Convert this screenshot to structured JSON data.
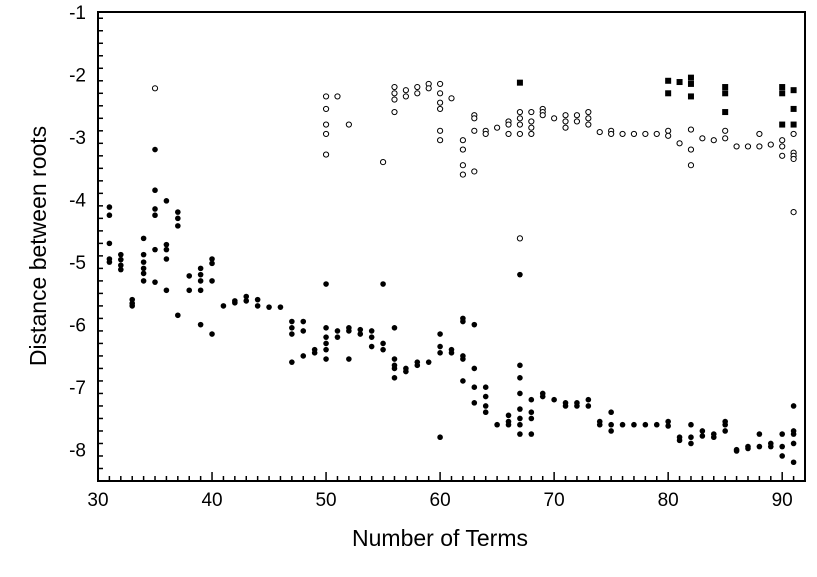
{
  "chart_data": {
    "type": "scatter",
    "xlabel": "Number of Terms",
    "ylabel": "Distance between roots",
    "xlim": [
      30,
      92
    ],
    "ylim": [
      -8.5,
      -1
    ],
    "xticks": [
      30,
      40,
      50,
      60,
      70,
      80,
      90
    ],
    "yticks": [
      -1,
      -2,
      -3,
      -4,
      -5,
      -6,
      -7,
      -8
    ],
    "grid": false,
    "legend": "none",
    "series": [
      {
        "marker": "filled-circle",
        "color": "#000000",
        "points": [
          [
            31,
            -4.12
          ],
          [
            31,
            -4.25
          ],
          [
            31,
            -4.7
          ],
          [
            31,
            -4.95
          ],
          [
            31,
            -5.0
          ],
          [
            32,
            -4.88
          ],
          [
            32,
            -4.96
          ],
          [
            32,
            -5.05
          ],
          [
            32,
            -5.12
          ],
          [
            33,
            -5.6
          ],
          [
            33,
            -5.66
          ],
          [
            33,
            -5.7
          ],
          [
            34,
            -4.62
          ],
          [
            34,
            -4.88
          ],
          [
            34,
            -5.0
          ],
          [
            34,
            -5.1
          ],
          [
            34,
            -5.18
          ],
          [
            34,
            -5.3
          ],
          [
            35,
            -3.2
          ],
          [
            35,
            -3.85
          ],
          [
            35,
            -4.15
          ],
          [
            35,
            -4.25
          ],
          [
            35,
            -4.8
          ],
          [
            35,
            -5.32
          ],
          [
            36,
            -4.02
          ],
          [
            36,
            -4.72
          ],
          [
            36,
            -4.8
          ],
          [
            36,
            -4.95
          ],
          [
            36,
            -5.45
          ],
          [
            37,
            -4.2
          ],
          [
            37,
            -4.3
          ],
          [
            37,
            -4.42
          ],
          [
            37,
            -5.85
          ],
          [
            38,
            -5.22
          ],
          [
            38,
            -5.45
          ],
          [
            39,
            -5.1
          ],
          [
            39,
            -5.2
          ],
          [
            39,
            -5.3
          ],
          [
            39,
            -5.45
          ],
          [
            39,
            -6.0
          ],
          [
            40,
            -4.95
          ],
          [
            40,
            -5.02
          ],
          [
            40,
            -5.3
          ],
          [
            40,
            -6.15
          ],
          [
            41,
            -5.7
          ],
          [
            42,
            -5.65
          ],
          [
            42,
            -5.62
          ],
          [
            43,
            -5.55
          ],
          [
            43,
            -5.62
          ],
          [
            44,
            -5.6
          ],
          [
            44,
            -5.7
          ],
          [
            45,
            -5.72
          ],
          [
            46,
            -5.72
          ],
          [
            47,
            -5.95
          ],
          [
            47,
            -6.05
          ],
          [
            47,
            -6.15
          ],
          [
            47,
            -6.6
          ],
          [
            48,
            -5.95
          ],
          [
            48,
            -6.1
          ],
          [
            48,
            -6.5
          ],
          [
            49,
            -6.45
          ],
          [
            49,
            -6.4
          ],
          [
            50,
            -5.35
          ],
          [
            50,
            -6.05
          ],
          [
            50,
            -6.2
          ],
          [
            50,
            -6.3
          ],
          [
            50,
            -6.4
          ],
          [
            50,
            -6.55
          ],
          [
            51,
            -6.1
          ],
          [
            51,
            -6.2
          ],
          [
            52,
            -6.05
          ],
          [
            52,
            -6.1
          ],
          [
            52,
            -6.55
          ],
          [
            53,
            -6.08
          ],
          [
            53,
            -6.15
          ],
          [
            54,
            -6.1
          ],
          [
            54,
            -6.2
          ],
          [
            54,
            -6.35
          ],
          [
            55,
            -5.35
          ],
          [
            55,
            -6.3
          ],
          [
            55,
            -6.4
          ],
          [
            56,
            -6.05
          ],
          [
            56,
            -6.55
          ],
          [
            56,
            -6.65
          ],
          [
            56,
            -6.7
          ],
          [
            56,
            -6.85
          ],
          [
            57,
            -6.7
          ],
          [
            57,
            -6.75
          ],
          [
            58,
            -6.6
          ],
          [
            58,
            -6.65
          ],
          [
            59,
            -6.6
          ],
          [
            60,
            -6.15
          ],
          [
            60,
            -6.35
          ],
          [
            60,
            -6.45
          ],
          [
            60,
            -7.8
          ],
          [
            61,
            -6.4
          ],
          [
            61,
            -6.45
          ],
          [
            62,
            -5.9
          ],
          [
            62,
            -5.95
          ],
          [
            62,
            -6.5
          ],
          [
            62,
            -6.55
          ],
          [
            62,
            -6.9
          ],
          [
            63,
            -6.0
          ],
          [
            63,
            -6.7
          ],
          [
            63,
            -7.0
          ],
          [
            63,
            -7.25
          ],
          [
            64,
            -7.0
          ],
          [
            64,
            -7.15
          ],
          [
            64,
            -7.3
          ],
          [
            64,
            -7.4
          ],
          [
            65,
            -7.6
          ],
          [
            66,
            -7.45
          ],
          [
            66,
            -7.55
          ],
          [
            66,
            -7.6
          ],
          [
            67,
            -5.2
          ],
          [
            67,
            -6.65
          ],
          [
            67,
            -6.85
          ],
          [
            67,
            -7.1
          ],
          [
            67,
            -7.35
          ],
          [
            67,
            -7.5
          ],
          [
            67,
            -7.6
          ],
          [
            67,
            -7.75
          ],
          [
            68,
            -7.2
          ],
          [
            68,
            -7.4
          ],
          [
            68,
            -7.5
          ],
          [
            68,
            -7.75
          ],
          [
            69,
            -7.1
          ],
          [
            69,
            -7.15
          ],
          [
            70,
            -7.2
          ],
          [
            71,
            -7.25
          ],
          [
            71,
            -7.3
          ],
          [
            72,
            -7.25
          ],
          [
            72,
            -7.3
          ],
          [
            73,
            -7.2
          ],
          [
            73,
            -7.3
          ],
          [
            74,
            -7.55
          ],
          [
            74,
            -7.6
          ],
          [
            75,
            -7.4
          ],
          [
            75,
            -7.6
          ],
          [
            75,
            -7.7
          ],
          [
            76,
            -7.6
          ],
          [
            77,
            -7.6
          ],
          [
            78,
            -7.6
          ],
          [
            79,
            -7.6
          ],
          [
            80,
            -7.55
          ],
          [
            80,
            -7.62
          ],
          [
            81,
            -7.8
          ],
          [
            81,
            -7.85
          ],
          [
            82,
            -7.6
          ],
          [
            82,
            -7.8
          ],
          [
            82,
            -7.9
          ],
          [
            83,
            -7.7
          ],
          [
            83,
            -7.78
          ],
          [
            84,
            -7.75
          ],
          [
            84,
            -7.8
          ],
          [
            85,
            -7.55
          ],
          [
            85,
            -7.6
          ],
          [
            85,
            -7.7
          ],
          [
            86,
            -8.0
          ],
          [
            86,
            -8.02
          ],
          [
            87,
            -7.95
          ],
          [
            87,
            -7.98
          ],
          [
            88,
            -7.75
          ],
          [
            88,
            -7.95
          ],
          [
            89,
            -7.9
          ],
          [
            89,
            -7.95
          ],
          [
            90,
            -7.75
          ],
          [
            90,
            -7.95
          ],
          [
            90,
            -8.1
          ],
          [
            91,
            -7.3
          ],
          [
            91,
            -7.7
          ],
          [
            91,
            -7.75
          ],
          [
            91,
            -7.9
          ],
          [
            91,
            -8.2
          ]
        ]
      },
      {
        "marker": "open-circle",
        "color": "#000000",
        "points": [
          [
            35,
            -2.22
          ],
          [
            50,
            -2.35
          ],
          [
            50,
            -2.55
          ],
          [
            50,
            -2.8
          ],
          [
            50,
            -2.95
          ],
          [
            50,
            -3.28
          ],
          [
            51,
            -2.35
          ],
          [
            52,
            -2.8
          ],
          [
            55,
            -3.4
          ],
          [
            56,
            -2.2
          ],
          [
            56,
            -2.3
          ],
          [
            56,
            -2.4
          ],
          [
            56,
            -2.6
          ],
          [
            57,
            -2.25
          ],
          [
            57,
            -2.35
          ],
          [
            58,
            -2.2
          ],
          [
            58,
            -2.3
          ],
          [
            59,
            -2.15
          ],
          [
            59,
            -2.22
          ],
          [
            60,
            -2.15
          ],
          [
            60,
            -2.3
          ],
          [
            60,
            -2.45
          ],
          [
            60,
            -2.55
          ],
          [
            60,
            -2.9
          ],
          [
            60,
            -3.05
          ],
          [
            61,
            -2.38
          ],
          [
            62,
            -3.05
          ],
          [
            62,
            -3.2
          ],
          [
            62,
            -3.45
          ],
          [
            62,
            -3.6
          ],
          [
            63,
            -2.65
          ],
          [
            63,
            -2.7
          ],
          [
            63,
            -2.9
          ],
          [
            63,
            -3.55
          ],
          [
            64,
            -2.9
          ],
          [
            64,
            -2.95
          ],
          [
            65,
            -2.85
          ],
          [
            66,
            -2.75
          ],
          [
            66,
            -2.8
          ],
          [
            66,
            -2.95
          ],
          [
            67,
            -2.6
          ],
          [
            67,
            -2.7
          ],
          [
            67,
            -2.8
          ],
          [
            67,
            -2.95
          ],
          [
            67,
            -4.62
          ],
          [
            68,
            -2.6
          ],
          [
            68,
            -2.75
          ],
          [
            68,
            -2.85
          ],
          [
            68,
            -2.95
          ],
          [
            69,
            -2.55
          ],
          [
            69,
            -2.6
          ],
          [
            69,
            -2.65
          ],
          [
            70,
            -2.7
          ],
          [
            71,
            -2.65
          ],
          [
            71,
            -2.75
          ],
          [
            71,
            -2.85
          ],
          [
            72,
            -2.65
          ],
          [
            72,
            -2.75
          ],
          [
            73,
            -2.6
          ],
          [
            73,
            -2.7
          ],
          [
            73,
            -2.8
          ],
          [
            74,
            -2.92
          ],
          [
            75,
            -2.9
          ],
          [
            75,
            -2.95
          ],
          [
            76,
            -2.95
          ],
          [
            77,
            -2.95
          ],
          [
            78,
            -2.95
          ],
          [
            79,
            -2.95
          ],
          [
            80,
            -2.9
          ],
          [
            80,
            -2.98
          ],
          [
            81,
            -3.1
          ],
          [
            82,
            -2.88
          ],
          [
            82,
            -3.2
          ],
          [
            82,
            -3.45
          ],
          [
            83,
            -3.02
          ],
          [
            84,
            -3.05
          ],
          [
            85,
            -2.9
          ],
          [
            85,
            -3.02
          ],
          [
            86,
            -3.15
          ],
          [
            87,
            -3.15
          ],
          [
            88,
            -2.95
          ],
          [
            88,
            -3.15
          ],
          [
            89,
            -3.12
          ],
          [
            90,
            -3.05
          ],
          [
            90,
            -3.15
          ],
          [
            90,
            -3.3
          ],
          [
            91,
            -2.95
          ],
          [
            91,
            -3.25
          ],
          [
            91,
            -3.3
          ],
          [
            91,
            -3.35
          ],
          [
            91,
            -4.2
          ]
        ]
      },
      {
        "marker": "filled-square",
        "color": "#000000",
        "points": [
          [
            67,
            -2.13
          ],
          [
            80,
            -2.1
          ],
          [
            80,
            -2.3
          ],
          [
            81,
            -2.12
          ],
          [
            82,
            -2.05
          ],
          [
            82,
            -2.15
          ],
          [
            82,
            -2.35
          ],
          [
            85,
            -2.2
          ],
          [
            85,
            -2.3
          ],
          [
            85,
            -2.6
          ],
          [
            90,
            -2.2
          ],
          [
            90,
            -2.3
          ],
          [
            90,
            -2.8
          ],
          [
            91,
            -2.25
          ],
          [
            91,
            -2.55
          ],
          [
            91,
            -2.8
          ]
        ]
      }
    ]
  }
}
